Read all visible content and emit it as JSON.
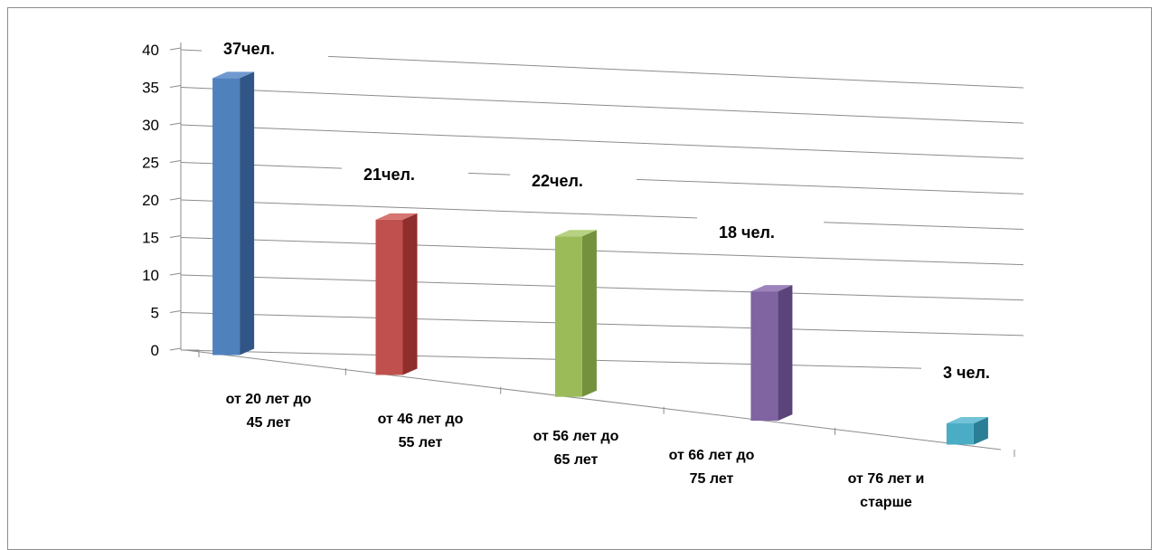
{
  "chart_data": {
    "type": "bar",
    "categories": [
      [
        "от 20 лет до",
        "45 лет"
      ],
      [
        "от 46 лет до",
        "55 лет"
      ],
      [
        "от 56 лет до",
        "65 лет"
      ],
      [
        "от 66 лет до",
        "75 лет"
      ],
      [
        "от 76 лет и",
        "старше"
      ]
    ],
    "values": [
      37,
      21,
      22,
      18,
      3
    ],
    "data_labels": [
      "37чел.",
      "21чел.",
      "22чел.",
      "18 чел.",
      "3 чел."
    ],
    "yticks": [
      "0",
      "5",
      "10",
      "15",
      "20",
      "25",
      "30",
      "35",
      "40"
    ],
    "ylim": [
      0,
      40
    ],
    "grid": true,
    "legend": "none",
    "colors": [
      {
        "front": "#4f81bd",
        "side": "#2f5686",
        "top": "#6f99cf"
      },
      {
        "front": "#c0504d",
        "side": "#8e2f2d",
        "top": "#d67572"
      },
      {
        "front": "#9bbb59",
        "side": "#74913d",
        "top": "#b6d17f"
      },
      {
        "front": "#8064a2",
        "side": "#5a4479",
        "top": "#9c84bb"
      },
      {
        "front": "#4bacc6",
        "side": "#2a7f97",
        "top": "#72c3d7"
      }
    ]
  }
}
